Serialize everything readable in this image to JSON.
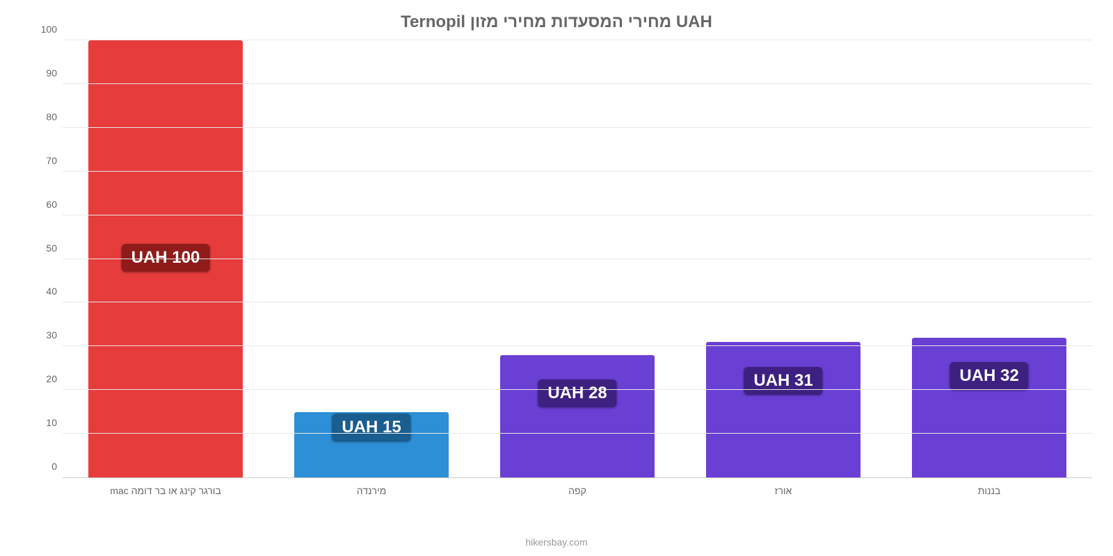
{
  "chart": {
    "type": "bar",
    "title": "Ternopil מחירי המסעדות מחירי מזון UAH",
    "title_color": "#666666",
    "title_fontsize": 24,
    "background_color": "#ffffff",
    "grid_color": "#e8e8e8",
    "axis_color": "#cccccc",
    "tick_label_color": "#666666",
    "tick_label_fontsize": 14,
    "x_label_fontsize": 14,
    "ylim": [
      0,
      100
    ],
    "ytick_step": 10,
    "yticks": [
      0,
      10,
      20,
      30,
      40,
      50,
      60,
      70,
      80,
      90,
      100
    ],
    "bar_width": 0.75,
    "bar_label_fontsize": 24,
    "categories": [
      "בורגר קינג או בר דומה mac",
      "מירנדה",
      "קפה",
      "אורז",
      "בננות"
    ],
    "values": [
      100,
      15,
      28,
      31,
      32
    ],
    "bar_colors": [
      "#e73c3c",
      "#2d8fd5",
      "#6a3fd4",
      "#6a3fd4",
      "#6a3fd4"
    ],
    "bar_label_text": [
      "UAH 100",
      "UAH 15",
      "UAH 28",
      "UAH 31",
      "UAH 32"
    ],
    "bar_label_bg": [
      "#8f1b1b",
      "#1a5d8f",
      "#3d2080",
      "#3d2080",
      "#3d2080"
    ],
    "bar_label_fg": [
      "#ffffff",
      "#ffffff",
      "#ffffff",
      "#ffffff",
      "#ffffff"
    ],
    "footer": "hikersbay.com",
    "footer_color": "#999999",
    "footer_fontsize": 14
  }
}
